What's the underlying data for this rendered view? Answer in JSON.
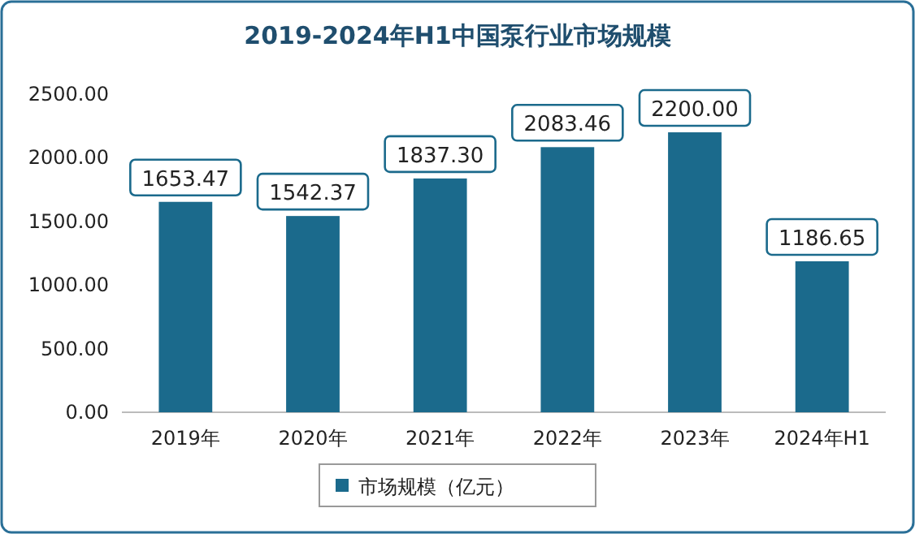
{
  "chart_data": {
    "type": "bar",
    "title": "2019-2024年H1中国泵行业市场规模",
    "categories": [
      "2019年",
      "2020年",
      "2021年",
      "2022年",
      "2023年",
      "2024年H1"
    ],
    "series": [
      {
        "name": "市场规模（亿元）",
        "color": "#1b6a8c",
        "values": [
          1653.47,
          1542.37,
          1837.3,
          2083.46,
          2200.0,
          1186.65
        ],
        "value_labels": [
          "1653.47",
          "1542.37",
          "1837.30",
          "2083.46",
          "2200.00",
          "1186.65"
        ]
      }
    ],
    "ylim": [
      0,
      2500
    ],
    "yticks": [
      {
        "value": 0,
        "label": "0.00"
      },
      {
        "value": 500,
        "label": "500.00"
      },
      {
        "value": 1000,
        "label": "1000.00"
      },
      {
        "value": 1500,
        "label": "1500.00"
      },
      {
        "value": 2000,
        "label": "2000.00"
      },
      {
        "value": 2500,
        "label": "2500.00"
      }
    ],
    "grid": false,
    "legend": "bottom"
  }
}
